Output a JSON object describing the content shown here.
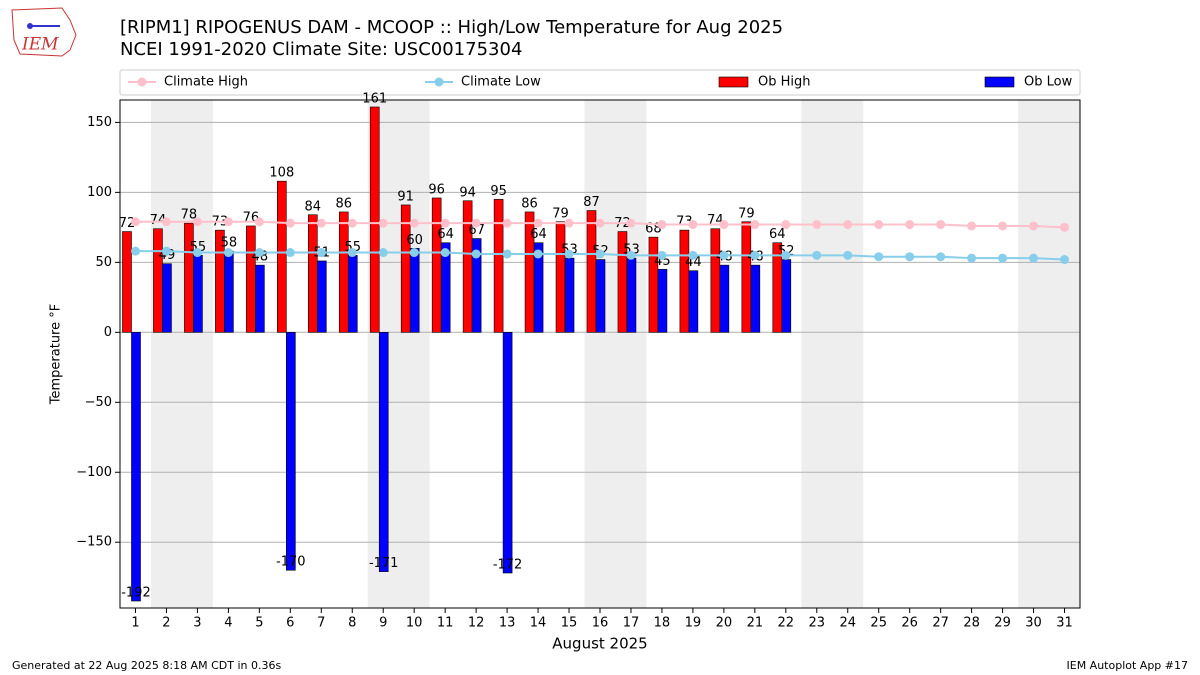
{
  "logo_text": "IEM",
  "chart_data": {
    "type": "bar",
    "title": "[RIPM1] RIPOGENUS DAM - MCOOP :: High/Low Temperature for Aug 2025",
    "subtitle": "NCEI 1991-2020 Climate Site: USC00175304",
    "x_label": "August 2025",
    "y_label": "Temperature °F",
    "footer_left": "Generated at 22 Aug 2025 8:18 AM CDT in 0.36s",
    "footer_right": "IEM Autoplot App #17",
    "categories": [
      "1",
      "2",
      "3",
      "4",
      "5",
      "6",
      "7",
      "8",
      "9",
      "10",
      "11",
      "12",
      "13",
      "14",
      "15",
      "16",
      "17",
      "18",
      "19",
      "20",
      "21",
      "22",
      "23",
      "24",
      "25",
      "26",
      "27",
      "28",
      "29",
      "30",
      "31"
    ],
    "ylim": [
      -197,
      166
    ],
    "yticks": [
      {
        "value": -150,
        "label": "−150"
      },
      {
        "value": -100,
        "label": "−100"
      },
      {
        "value": -50,
        "label": "−50"
      },
      0,
      50,
      100,
      150
    ],
    "grid": true,
    "series": [
      {
        "name": "Climate High",
        "color": "#ffc0cb",
        "kind": "line",
        "values": [
          79,
          79,
          79,
          79,
          79,
          78,
          78,
          78,
          78,
          78,
          78,
          78,
          78,
          78,
          78,
          78,
          78,
          77,
          77,
          77,
          77,
          77,
          77,
          77,
          77,
          77,
          77,
          76,
          76,
          76,
          75
        ]
      },
      {
        "name": "Climate Low",
        "color": "#87ceeb",
        "kind": "line",
        "values": [
          58,
          58,
          57,
          57,
          57,
          57,
          57,
          57,
          57,
          57,
          57,
          56,
          56,
          56,
          56,
          56,
          55,
          55,
          55,
          55,
          55,
          55,
          55,
          55,
          54,
          54,
          54,
          53,
          53,
          53,
          52
        ]
      },
      {
        "name": "Ob High",
        "color": "#ff0000",
        "kind": "bar",
        "values": [
          72,
          74,
          78,
          73,
          76,
          108,
          84,
          86,
          161,
          91,
          96,
          94,
          95,
          86,
          79,
          87,
          72,
          68,
          73,
          74,
          79,
          64,
          null,
          null,
          null,
          null,
          null,
          null,
          null,
          null,
          null
        ]
      },
      {
        "name": "Ob Low",
        "color": "#0000ff",
        "kind": "bar",
        "values": [
          -192,
          49,
          55,
          58,
          48,
          -170,
          51,
          55,
          -171,
          60,
          64,
          67,
          -172,
          64,
          53,
          52,
          53,
          45,
          44,
          48,
          48,
          52,
          null,
          null,
          null,
          null,
          null,
          null,
          null,
          null,
          null
        ]
      }
    ]
  }
}
